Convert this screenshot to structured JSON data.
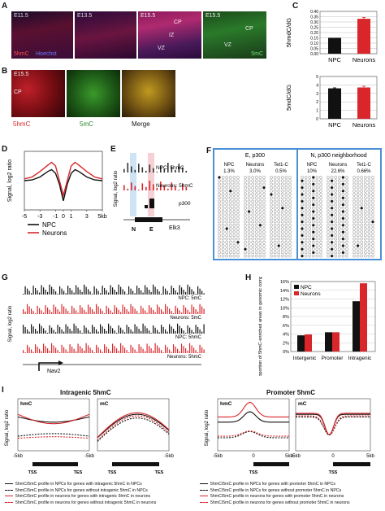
{
  "panels": {
    "A": {
      "label": "A",
      "stages": [
        "E11.5",
        "E13.5",
        "E15.5",
        "E15.5"
      ],
      "regions": [
        "CP",
        "IZ",
        "VZ",
        "CP",
        "VZ"
      ],
      "stain_5hmC": "5hmC",
      "stain_hoechst": "Hoechst",
      "stain_5mC": "5mC"
    },
    "B": {
      "label": "B",
      "stage": "E15.5",
      "region": "CP",
      "stain_5hmC": "5hmC",
      "stain_5mC": "5mC",
      "merge": "Merge"
    },
    "C": {
      "label": "C"
    },
    "D": {
      "label": "D"
    },
    "E": {
      "label": "E",
      "track_npc": "NPC: 5hmC",
      "track_neurons": "Neurons: 5hmC",
      "track_p300": "p300",
      "gene": "Elk3",
      "region_n": "N",
      "region_e": "E"
    },
    "F": {
      "label": "F",
      "header_left": "E, p300",
      "header_right": "N, p300 neighborhood",
      "columns": [
        {
          "name": "NPC",
          "pct": "1.3%"
        },
        {
          "name": "Neurons",
          "pct": "3.0%"
        },
        {
          "name": "Tet1-C",
          "pct": "0.5%"
        },
        {
          "name": "NPC",
          "pct": "10%"
        },
        {
          "name": "Neurons",
          "pct": "22.6%"
        },
        {
          "name": "Tet1-C",
          "pct": "0.66%"
        }
      ]
    },
    "G": {
      "label": "G",
      "tracks": [
        "NPC: 5mC",
        "Neurons: 5mC",
        "NPC: 5hmC",
        "Neurons: 5hmC"
      ],
      "ylabel": "Signal, log2 ratio",
      "gene": "Nav2"
    },
    "H": {
      "label": "H"
    },
    "I": {
      "label": "I",
      "title_left": "Intragenic 5hmC",
      "title_right": "Promoter 5hmC",
      "sub_hmc": "hmC",
      "sub_mc": "mC",
      "ylabel": "Signal, log2 ratio",
      "left_x": [
        "-5kb",
        "0",
        "5kb"
      ],
      "left_x2": [
        "-5kb",
        "-5kb"
      ],
      "right_x": [
        "-5kb",
        "0",
        "5kb"
      ],
      "tss": "TSS",
      "tes": "TES",
      "legend_left": [
        "5hmC/5mC profile in NPCs for genes with intragenic 5hmC in NPCs",
        "5hmC/5mC profile in NPCs for genes without intragenic 5hmC in NPCs",
        "5hmC/5mC profile in neurons for genes with intragenic 5hmC in neurons",
        "5hmC/5mC profile in neurons for genes without intragenic 5hmC in neurons"
      ],
      "legend_right": [
        "5hmC/5mC profile in NPCs for genes with promoter 5hmC in NPCs",
        "5hmC/5mC profile in NPCs for genes without promoter 5hmC in NPCs",
        "5hmC/5mC profile in neurons for genes with promoter 5hmC in neurons",
        "5hmC/5mC profile in neurons for genes without promoter 5hmC in neurons"
      ]
    }
  },
  "colors": {
    "npc": "#111111",
    "neurons": "#d8262b",
    "border_blue": "#4a90d9"
  },
  "chart_data": [
    {
      "id": "C-top",
      "type": "bar",
      "categories": [
        "NPC",
        "Neurons"
      ],
      "values": [
        0.15,
        0.33
      ],
      "ylabel": "5hmdC/dG",
      "ylim": [
        0,
        0.4
      ],
      "yticks": [
        "0.00",
        "0.05",
        "0.10",
        "0.15",
        "0.20",
        "0.25",
        "0.30",
        "0.35",
        "0.40"
      ],
      "grid": true
    },
    {
      "id": "C-bottom",
      "type": "bar",
      "categories": [
        "NPC",
        "Neurons"
      ],
      "values": [
        3.6,
        3.7
      ],
      "ylabel": "5mdC/dG",
      "ylim": [
        0,
        5
      ],
      "yticks": [
        "0",
        "1",
        "2",
        "3",
        "4",
        "5"
      ],
      "grid": true
    },
    {
      "id": "D",
      "type": "line",
      "ylabel": "Signal, log2 ratio",
      "x_ticks": [
        "-5",
        "-3",
        "-1",
        "0",
        "1",
        "3",
        "5kb"
      ],
      "x": [
        -5,
        -4,
        -3,
        -2,
        -1.5,
        -1,
        -0.5,
        0,
        0.5,
        1,
        1.5,
        2,
        3,
        4,
        5
      ],
      "series": [
        {
          "name": "NPC",
          "values": [
            0.2,
            0.22,
            0.3,
            0.45,
            0.5,
            0.4,
            0.1,
            -0.35,
            0.1,
            0.4,
            0.5,
            0.45,
            0.3,
            0.22,
            0.2
          ]
        },
        {
          "name": "Neurons",
          "values": [
            0.25,
            0.3,
            0.45,
            0.62,
            0.7,
            0.6,
            0.2,
            -0.2,
            0.2,
            0.6,
            0.7,
            0.62,
            0.45,
            0.3,
            0.25
          ]
        }
      ]
    },
    {
      "id": "H",
      "type": "bar",
      "ylabel": "Proportion of 5hmC-enriched areas in genomic compartments, %",
      "categories": [
        "Intergenic",
        "Promoter",
        "Intragenic"
      ],
      "yticks": [
        "0%",
        "2%",
        "4%",
        "6%",
        "8%",
        "10%",
        "12%",
        "14%",
        "16%"
      ],
      "ylim": [
        0,
        16
      ],
      "legend_placement": "top-left",
      "series": [
        {
          "name": "NPC",
          "values": [
            3.7,
            4.4,
            11.5
          ]
        },
        {
          "name": "Neurons",
          "values": [
            3.9,
            4.4,
            15.6
          ]
        }
      ]
    }
  ]
}
